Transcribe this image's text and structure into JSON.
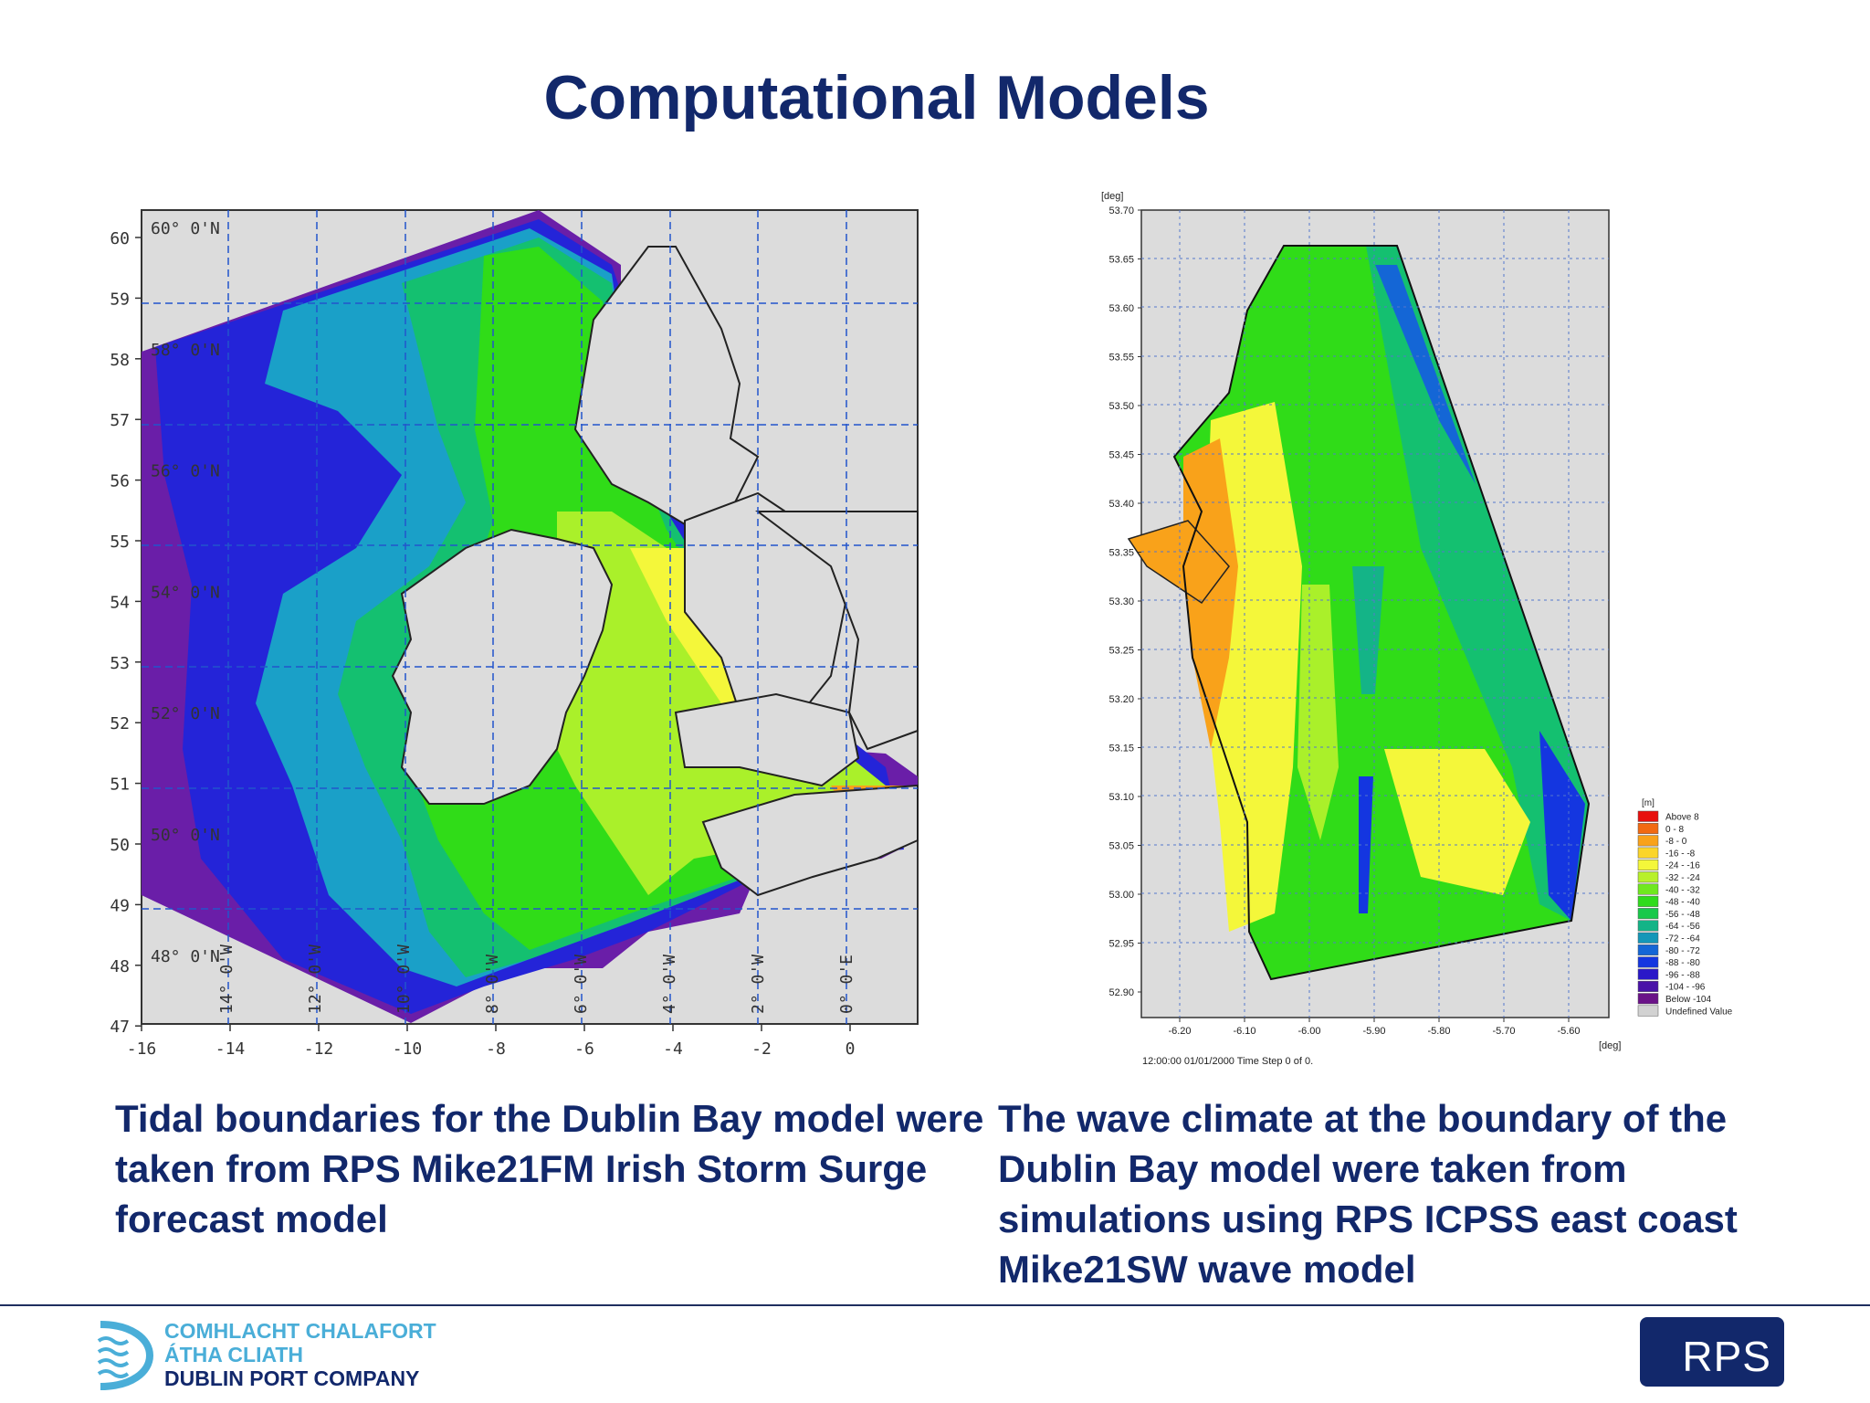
{
  "title": "Computational Models",
  "left_map": {
    "y_ticks": [
      "60",
      "59",
      "58",
      "57",
      "56",
      "55",
      "54",
      "53",
      "52",
      "51",
      "50",
      "49",
      "48",
      "47"
    ],
    "x_ticks": [
      "-16",
      "-14",
      "-12",
      "-10",
      "-8",
      "-6",
      "-4",
      "-2",
      "0"
    ],
    "lat_labels": [
      "60° 0'N",
      "58° 0'N",
      "56° 0'N",
      "54° 0'N",
      "52° 0'N",
      "50° 0'N",
      "48° 0'N"
    ],
    "lon_labels": [
      "14° 0'W",
      "12° 0'W",
      "10° 0'W",
      "8° 0'W",
      "6° 0'W",
      "4° 0'W",
      "2° 0'W",
      "0° 0'E"
    ]
  },
  "right_map": {
    "y_unit": "[deg]",
    "x_unit": "[deg]",
    "y_ticks": [
      "53.70",
      "53.65",
      "53.60",
      "53.55",
      "53.50",
      "53.45",
      "53.40",
      "53.35",
      "53.30",
      "53.25",
      "53.20",
      "53.15",
      "53.10",
      "53.05",
      "53.00",
      "52.95",
      "52.90"
    ],
    "x_ticks": [
      "-6.20",
      "-6.10",
      "-6.00",
      "-5.90",
      "-5.80",
      "-5.70",
      "-5.60"
    ],
    "timestamp": "12:00:00 01/01/2000  Time Step 0 of 0.",
    "legend": {
      "unit": "[m]",
      "items": [
        {
          "label": "Above    8",
          "color": "#e8100e"
        },
        {
          "label": "0 -    8",
          "color": "#f26a12"
        },
        {
          "label": "-8 -    0",
          "color": "#f9a21a"
        },
        {
          "label": "-16 -   -8",
          "color": "#fbd52a"
        },
        {
          "label": "-24 -  -16",
          "color": "#f4f73a"
        },
        {
          "label": "-32 -  -24",
          "color": "#b8f02a"
        },
        {
          "label": "-40 -  -32",
          "color": "#6fe81f"
        },
        {
          "label": "-48 -  -40",
          "color": "#2fdc1c"
        },
        {
          "label": "-56 -  -48",
          "color": "#18c94a"
        },
        {
          "label": "-64 -  -56",
          "color": "#14b487"
        },
        {
          "label": "-72 -  -64",
          "color": "#1497b8"
        },
        {
          "label": "-80 -  -72",
          "color": "#1466d6"
        },
        {
          "label": "-88 -  -80",
          "color": "#1436e0"
        },
        {
          "label": "-96 -  -88",
          "color": "#2a18c8"
        },
        {
          "label": "-104 -  -96",
          "color": "#4a12a8"
        },
        {
          "label": "Below -104",
          "color": "#6a1288"
        },
        {
          "label": "Undefined Value",
          "color": "#d2d2d2"
        }
      ]
    }
  },
  "captions": {
    "left": "Tidal boundaries for the Dublin Bay model were taken from RPS Mike21FM Irish Storm Surge forecast model",
    "right": "The wave climate at the boundary of the Dublin Bay model were taken from simulations using RPS ICPSS east coast Mike21SW wave model"
  },
  "footer": {
    "logo_lines": [
      "COMHLACHT CHALAFORT",
      "ÁTHA CLIATH",
      "DUBLIN PORT COMPANY"
    ],
    "rps": "RPS"
  },
  "colors": {
    "title": "#12286b",
    "accent": "#4aaed8"
  }
}
